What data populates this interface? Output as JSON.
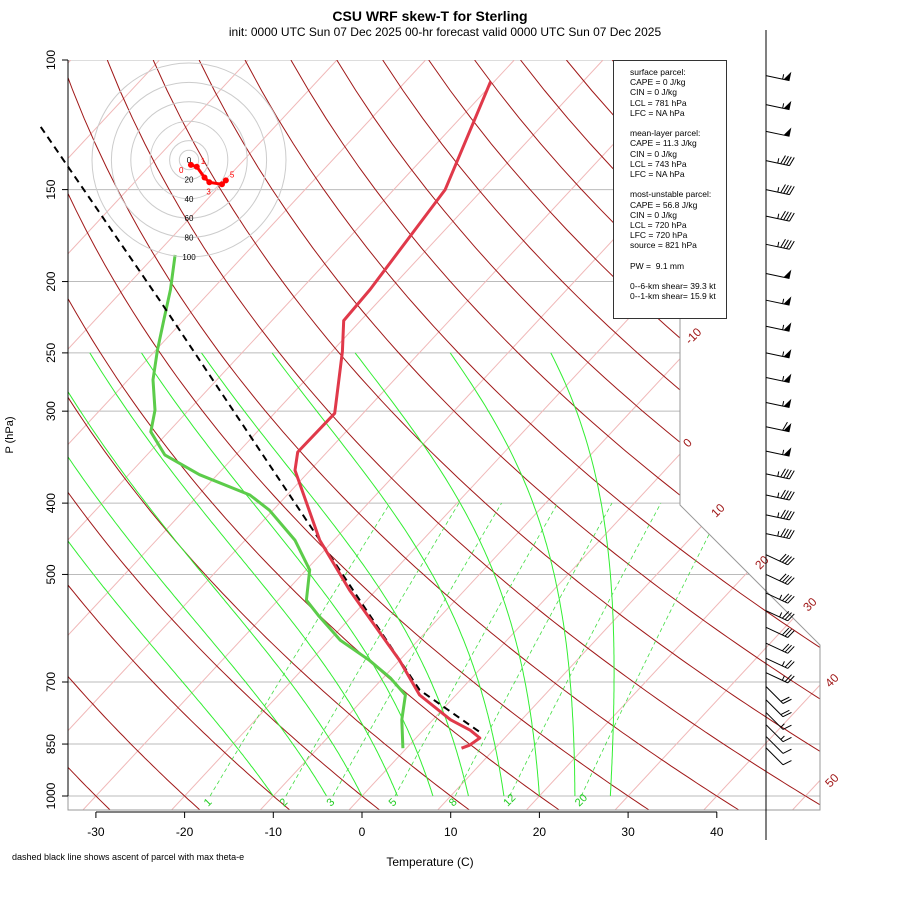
{
  "title": "CSU WRF skew-T for Sterling",
  "subtitle": "init: 0000 UTC Sun 07 Dec 2025    00-hr forecast valid 0000 UTC Sun 07 Dec 2025",
  "footnote": "dashed black line shows ascent of parcel with max theta-e",
  "stats": [
    "surface parcel:",
    "CAPE = 0 J/kg",
    "CIN = 0 J/kg",
    "LCL = 781 hPa",
    "LFC = NA hPa",
    "",
    "mean-layer parcel:",
    "CAPE = 11.3 J/kg",
    "CIN = 0 J/kg",
    "LCL = 743 hPa",
    "LFC = NA hPa",
    "",
    "most-unstable parcel:",
    "CAPE = 56.8 J/kg",
    "CIN = 0 J/kg",
    "LCL = 720 hPa",
    "LFC = 720 hPa",
    "source = 821 hPa",
    "",
    "PW =  9.1 mm",
    "",
    "0--6-km shear= 39.3 kt",
    "0--1-km shear= 15.9 kt"
  ],
  "chart_data": {
    "type": "line",
    "title": "CSU WRF skew-T for Sterling",
    "xlabel": "Temperature (C)",
    "ylabel": "P (hPa)",
    "xlim": [
      -33,
      45
    ],
    "ylim": [
      1000,
      100
    ],
    "x_ticks": [
      -30,
      -20,
      -10,
      0,
      10,
      20,
      30,
      40
    ],
    "p_ticks": [
      100,
      150,
      200,
      250,
      300,
      400,
      500,
      700,
      850,
      1000
    ],
    "isotherm_labels": [
      -10,
      0,
      10,
      20,
      30,
      40,
      50
    ],
    "mixing_ratio_labels": [
      1,
      2,
      3,
      5,
      8,
      12,
      20
    ],
    "colors": {
      "temperature": "#e0394a",
      "dewpoint": "#5ccc4a",
      "parcel": "#000000",
      "dry_adiabat": "#a01818",
      "isotherm": "#f0b8b8",
      "moist_adiabat": "#33ee33",
      "mixing_ratio": "#44dd44"
    },
    "temperature": {
      "p": [
        861,
        853,
        834,
        814,
        788,
        729,
        654,
        525,
        449,
        361,
        341,
        302,
        249,
        226,
        205,
        150,
        107
      ],
      "t": [
        6.2,
        6.8,
        7.2,
        5.3,
        2.0,
        -4.1,
        -10.0,
        -23.0,
        -31.6,
        -41.7,
        -43.3,
        -43.2,
        -48.8,
        -51.9,
        -52.2,
        -54.2,
        -60.4
      ]
    },
    "dewpoint": {
      "p": [
        861,
        788,
        729,
        691,
        654,
        614,
        568,
        542,
        493,
        449,
        409,
        390,
        366,
        344,
        320,
        299,
        272,
        248,
        226,
        205,
        184
      ],
      "t": [
        -0.4,
        -3.5,
        -5.7,
        -9.2,
        -13.4,
        -18.8,
        -23.9,
        -26.8,
        -29.6,
        -34.4,
        -40.4,
        -44.2,
        -52,
        -58,
        -62,
        -63.8,
        -67.2,
        -69.8,
        -72.2,
        -74.7,
        -77.8
      ]
    },
    "parcel": {
      "p": [
        817,
        718,
        449,
        212,
        122.6
      ],
      "t": [
        6.4,
        -4.6,
        -31.6,
        -74.8,
        -106.7
      ]
    },
    "hodograph": {
      "rings": [
        20,
        40,
        60,
        80,
        100
      ],
      "ring_labels": [
        "0",
        "20",
        "40",
        "60",
        "80",
        "100"
      ],
      "point_labels": [
        "0",
        "1",
        "3",
        "5"
      ],
      "u": [
        2,
        8,
        16,
        21,
        34,
        38
      ],
      "v": [
        -5,
        -7,
        -18,
        -23,
        -25,
        -21
      ]
    },
    "wind_barbs": {
      "p": [
        105,
        115,
        125,
        137,
        150,
        163,
        178,
        195,
        212,
        230,
        250,
        270,
        292,
        315,
        340,
        365,
        390,
        415,
        440,
        470,
        500,
        530,
        560,
        590,
        620,
        650,
        680,
        710,
        740,
        770,
        800,
        830,
        860
      ],
      "speed_kt": [
        55,
        55,
        50,
        45,
        45,
        45,
        45,
        50,
        55,
        55,
        55,
        55,
        55,
        60,
        55,
        45,
        45,
        45,
        45,
        40,
        40,
        35,
        35,
        30,
        30,
        25,
        25,
        20,
        20,
        15,
        15,
        10,
        10
      ]
    }
  }
}
